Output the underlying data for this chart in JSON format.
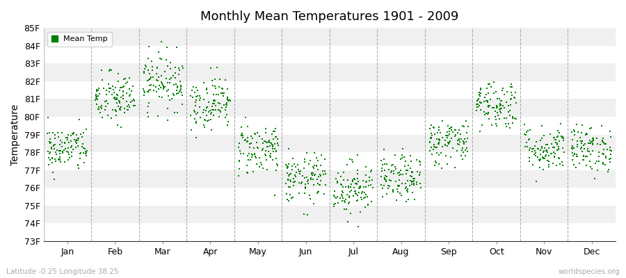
{
  "title": "Monthly Mean Temperatures 1901 - 2009",
  "ylabel": "Temperature",
  "footer_left": "Latitude -0.25 Longitude 38.25",
  "footer_right": "worldspecies.org",
  "legend_label": "Mean Temp",
  "ylim": [
    73,
    85
  ],
  "ytick_labels": [
    "73F",
    "74F",
    "75F",
    "76F",
    "77F",
    "78F",
    "79F",
    "80F",
    "81F",
    "82F",
    "83F",
    "84F",
    "85F"
  ],
  "months": [
    "Jan",
    "Feb",
    "Mar",
    "Apr",
    "May",
    "Jun",
    "Jul",
    "Aug",
    "Sep",
    "Oct",
    "Nov",
    "Dec"
  ],
  "marker_color": "#008000",
  "marker_size": 3,
  "background_color": "#ffffff",
  "panel_color": "#ffffff",
  "alt_band_color": "#f0f0f0",
  "dashed_line_color": "#aaaaaa",
  "n_years": 109,
  "seed": 42,
  "monthly_means": [
    78.2,
    81.0,
    82.0,
    80.8,
    78.2,
    76.5,
    76.0,
    76.5,
    78.6,
    80.7,
    78.2,
    78.2
  ],
  "monthly_stds": [
    0.65,
    0.75,
    0.8,
    0.75,
    0.75,
    0.7,
    0.75,
    0.65,
    0.65,
    0.7,
    0.65,
    0.65
  ]
}
